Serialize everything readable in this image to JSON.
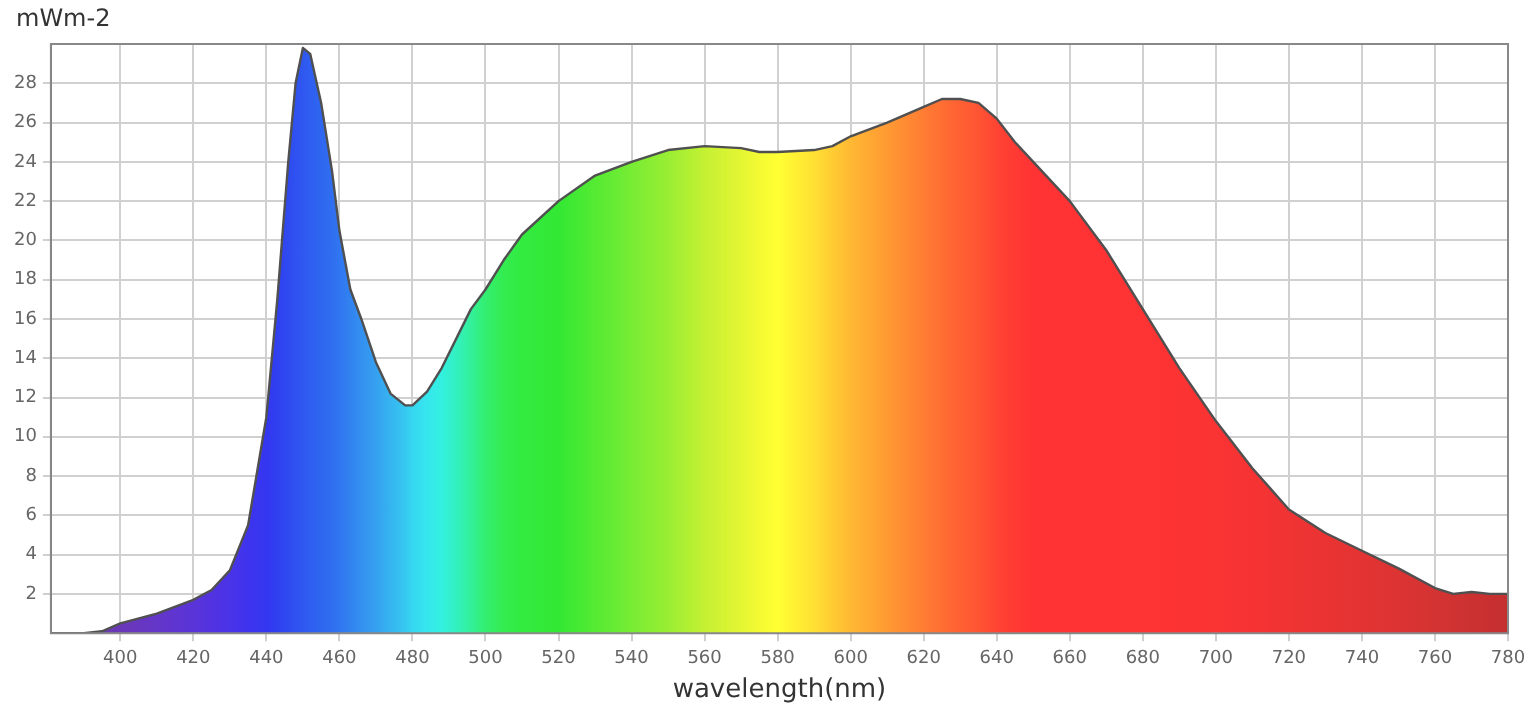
{
  "chart_data": {
    "type": "area",
    "xlabel": "wavelength(nm)",
    "ylabel": "mWm-2",
    "xlim": [
      381,
      780
    ],
    "xticks": [
      400,
      420,
      440,
      460,
      480,
      500,
      520,
      540,
      560,
      580,
      600,
      620,
      640,
      660,
      680,
      700,
      720,
      740,
      760,
      780
    ],
    "ylim": [
      0,
      30
    ],
    "yticks": [
      2,
      4,
      6,
      8,
      10,
      12,
      14,
      16,
      18,
      20,
      22,
      24,
      26,
      28
    ],
    "grid": true,
    "legend": false,
    "series": [
      {
        "color": "#505050",
        "x": [
          381,
          390,
          395,
          400,
          410,
          420,
          425,
          430,
          435,
          440,
          443,
          446,
          448,
          450,
          452,
          455,
          458,
          460,
          463,
          466,
          470,
          474,
          478,
          480,
          484,
          488,
          492,
          496,
          500,
          505,
          510,
          520,
          530,
          540,
          550,
          560,
          570,
          575,
          580,
          590,
          595,
          600,
          610,
          620,
          625,
          630,
          635,
          640,
          645,
          650,
          660,
          670,
          680,
          690,
          700,
          710,
          720,
          730,
          740,
          750,
          760,
          765,
          770,
          775,
          780
        ],
        "values": [
          0,
          0,
          0.1,
          0.5,
          1.0,
          1.7,
          2.2,
          3.2,
          5.5,
          11,
          17,
          24,
          28,
          29.8,
          29.5,
          27,
          23.5,
          20.5,
          17.5,
          16,
          13.8,
          12.2,
          11.6,
          11.6,
          12.3,
          13.5,
          15,
          16.5,
          17.5,
          19,
          20.3,
          22,
          23.3,
          24,
          24.6,
          24.8,
          24.7,
          24.5,
          24.5,
          24.6,
          24.8,
          25.3,
          26,
          26.8,
          27.2,
          27.2,
          27,
          26.2,
          25,
          24,
          22,
          19.5,
          16.5,
          13.5,
          10.8,
          8.4,
          6.3,
          5.1,
          4.2,
          3.3,
          2.3,
          2.0,
          2.1,
          2.0,
          2.0
        ],
        "colors": [
          "#6a3aa8",
          "#6a3aa8",
          "#6a3ab0",
          "#6a38b8",
          "#6436c8",
          "#5a34d8",
          "#5233e0",
          "#4a33e8",
          "#3e34ee",
          "#3436f0",
          "#3040f0",
          "#2f4af0",
          "#2f52f0",
          "#2f58f0",
          "#2f5ef0",
          "#2f66f0",
          "#306ef0",
          "#3076f0",
          "#3282f0",
          "#3490f0",
          "#36a0f0",
          "#36b4f0",
          "#36c8f0",
          "#36d6f0",
          "#36e6ee",
          "#33f0e0",
          "#33f0c0",
          "#33f09a",
          "#33ee70",
          "#33ec50",
          "#33ea40",
          "#33e833",
          "#55ea33",
          "#77ec33",
          "#99ee33",
          "#c4f033",
          "#e4f633",
          "#f4fa33",
          "#ffff33",
          "#ffe033",
          "#ffcc33",
          "#ffb833",
          "#ff9a33",
          "#ff7c33",
          "#ff6e33",
          "#ff6033",
          "#ff5433",
          "#ff4433",
          "#ff3a33",
          "#ff3333",
          "#ff3333",
          "#ff3333",
          "#fe3333",
          "#fc3333",
          "#fa3333",
          "#f63333",
          "#f03333",
          "#ea3333",
          "#e43333",
          "#dc3333",
          "#d43333",
          "#d03232",
          "#cc3131",
          "#c83030",
          "#c43030"
        ]
      }
    ]
  }
}
